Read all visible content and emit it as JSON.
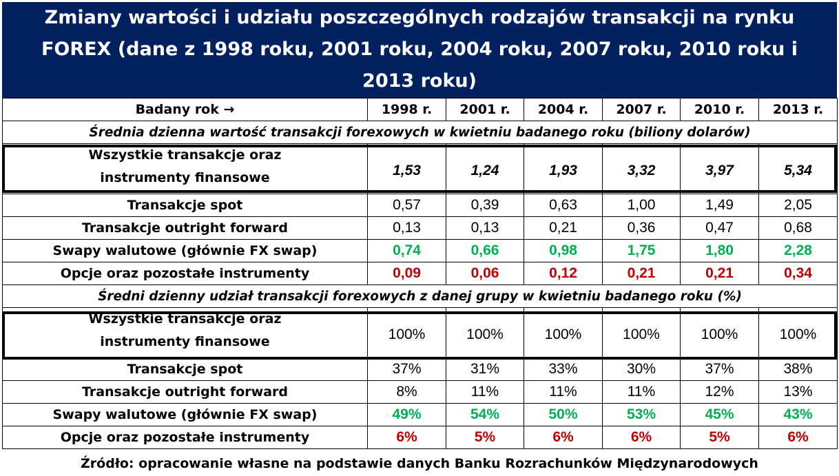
{
  "title": "Zmiany wartości i udziału poszczególnych rodzajów transakcji na rynku FOREX (dane z 1998 roku, 2001 roku, 2004 roku, 2007 roku, 2010 roku i 2013 roku)",
  "header": {
    "label": "Badany rok →",
    "years": [
      "1998 r.",
      "2001 r.",
      "2004 r.",
      "2007 r.",
      "2010 r.",
      "2013 r."
    ]
  },
  "section1": {
    "heading": "Średnia dzienna wartość transakcji forexowych w kwietniu badanego roku (biliony dolarów)",
    "total": {
      "label_line1": "Wszystkie transakcje oraz",
      "label_line2": "instrumenty finansowe",
      "values": [
        "1,53",
        "1,24",
        "1,93",
        "3,32",
        "3,97",
        "5,34"
      ]
    },
    "rows": [
      {
        "label": "Transakcje spot",
        "values": [
          "0,57",
          "0,39",
          "0,63",
          "1,00",
          "1,49",
          "2,05"
        ]
      },
      {
        "label": "Transakcje outright forward",
        "values": [
          "0,13",
          "0,13",
          "0,21",
          "0,36",
          "0,47",
          "0,68"
        ]
      },
      {
        "label": "Swapy walutowe (głównie FX swap)",
        "values": [
          "0,74",
          "0,66",
          "0,98",
          "1,75",
          "1,80",
          "2,28"
        ]
      },
      {
        "label": "Opcje oraz pozostałe instrumenty",
        "values": [
          "0,09",
          "0,06",
          "0,12",
          "0,21",
          "0,21",
          "0,34"
        ]
      }
    ]
  },
  "section2": {
    "heading": "Średni dzienny udział transakcji forexowych z danej grupy w kwietniu badanego roku (%)",
    "total": {
      "label_line1": "Wszystkie transakcje oraz",
      "label_line2": "instrumenty finansowe",
      "values": [
        "100%",
        "100%",
        "100%",
        "100%",
        "100%",
        "100%"
      ]
    },
    "rows": [
      {
        "label": "Transakcje spot",
        "values": [
          "37%",
          "31%",
          "33%",
          "30%",
          "37%",
          "38%"
        ]
      },
      {
        "label": "Transakcje outright forward",
        "values": [
          "8%",
          "11%",
          "11%",
          "11%",
          "12%",
          "13%"
        ]
      },
      {
        "label": "Swapy walutowe (głównie FX swap)",
        "values": [
          "49%",
          "54%",
          "50%",
          "53%",
          "45%",
          "43%"
        ]
      },
      {
        "label": "Opcje oraz pozostałe instrumenty",
        "values": [
          "6%",
          "5%",
          "6%",
          "6%",
          "5%",
          "6%"
        ]
      }
    ]
  },
  "source": "Źródło: opracowanie własne na podstawie danych Banku Rozrachunków Międzynarodowych",
  "colors": {
    "title_bg": "#002060",
    "title_text": "#ffffff",
    "swap_values": "#00b050",
    "options_values": "#c00000"
  }
}
